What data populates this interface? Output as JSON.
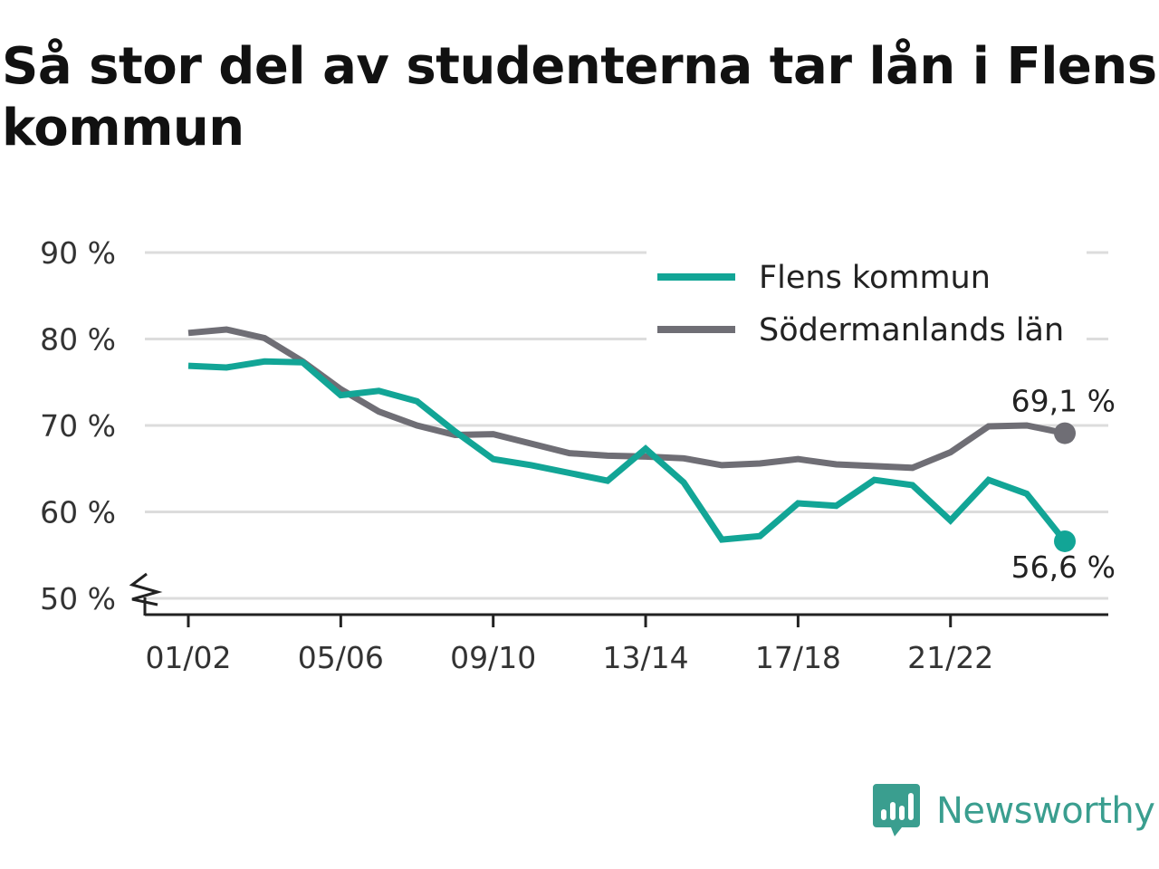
{
  "title": "Så stor del av studenterna tar lån i Flens kommun",
  "brand": {
    "name": "Newsworthy",
    "icon": "newsworthy-logo-icon",
    "color": "#3a9e8f"
  },
  "chart_data": {
    "type": "line",
    "title": "Så stor del av studenterna tar lån i Flens kommun",
    "xlabel": "",
    "ylabel": "",
    "ylim": [
      50,
      90
    ],
    "y_ticks": [
      50,
      60,
      70,
      80,
      90
    ],
    "y_tick_labels": [
      "50 %",
      "60 %",
      "70 %",
      "80 %",
      "90 %"
    ],
    "y_axis_break": true,
    "grid": true,
    "legend_position": "top-right",
    "x_ticks": [
      "01/02",
      "05/06",
      "09/10",
      "13/14",
      "17/18",
      "21/22"
    ],
    "categories": [
      "01/02",
      "02/03",
      "03/04",
      "04/05",
      "05/06",
      "06/07",
      "07/08",
      "08/09",
      "09/10",
      "10/11",
      "11/12",
      "12/13",
      "13/14",
      "14/15",
      "15/16",
      "16/17",
      "17/18",
      "18/19",
      "19/20",
      "20/21",
      "21/22",
      "22/23",
      "23/24",
      "24/25"
    ],
    "series": [
      {
        "name": "Flens kommun",
        "color": "#12a596",
        "values": [
          76.9,
          76.7,
          77.4,
          77.3,
          73.5,
          74.0,
          72.8,
          69.3,
          66.1,
          65.4,
          64.5,
          63.6,
          67.3,
          63.4,
          56.8,
          57.2,
          61.0,
          60.7,
          63.7,
          63.1,
          59.0,
          63.7,
          62.1,
          56.6
        ],
        "end_label": "56,6 %"
      },
      {
        "name": "Södermanlands län",
        "color": "#6f6e75",
        "values": [
          80.7,
          81.1,
          80.1,
          77.4,
          74.2,
          71.6,
          70.0,
          68.9,
          69.0,
          67.9,
          66.8,
          66.5,
          66.4,
          66.2,
          65.4,
          65.6,
          66.1,
          65.5,
          65.3,
          65.1,
          66.9,
          69.9,
          70.0,
          69.1
        ],
        "end_label": "69,1 %"
      }
    ]
  }
}
